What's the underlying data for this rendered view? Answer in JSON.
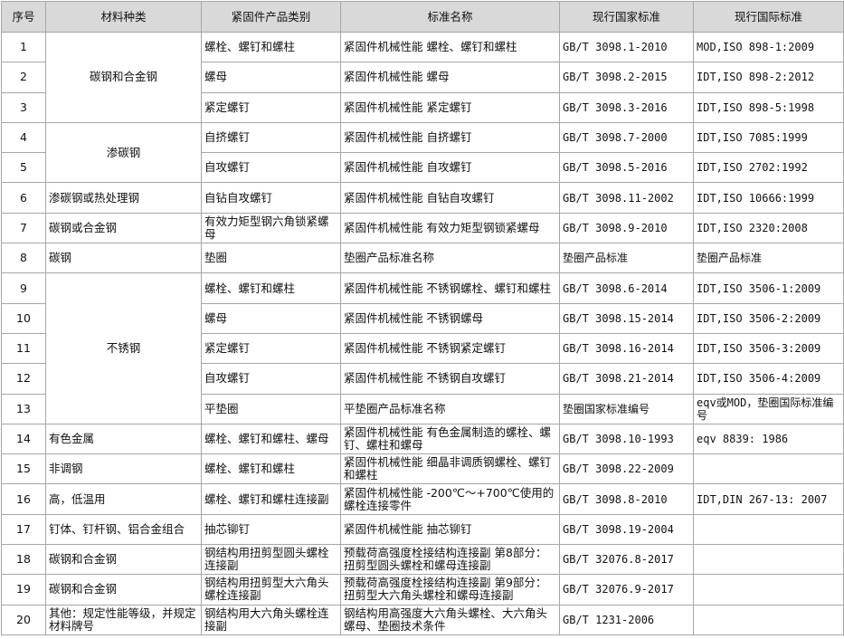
{
  "table": {
    "header": [
      "序号",
      "材料种类",
      "紧固件产品类别",
      "标准名称",
      "现行国家标准",
      "现行国际标准"
    ],
    "rows": [
      {
        "no": "1",
        "material": "碳钢和合金钢",
        "product": "螺栓、螺钉和螺柱",
        "standard": "紧固件机械性能 螺栓、螺钉和螺柱",
        "national": "GB/T 3098.1-2010",
        "international": "MOD,ISO 898-1:2009"
      },
      {
        "no": "2",
        "product": "螺母",
        "standard": "紧固件机械性能 螺母",
        "national": "GB/T 3098.2-2015",
        "international": "IDT,ISO 898-2:2012"
      },
      {
        "no": "3",
        "product": "紧定螺钉",
        "standard": "紧固件机械性能 紧定螺钉",
        "national": "GB/T 3098.3-2016",
        "international": "IDT,ISO 898-5:1998"
      },
      {
        "no": "4",
        "material": "渗碳钢",
        "product": "自挤螺钉",
        "standard": "紧固件机械性能 自挤螺钉",
        "national": "GB/T 3098.7-2000",
        "international": "IDT,ISO 7085:1999"
      },
      {
        "no": "5",
        "product": "自攻螺钉",
        "standard": "紧固件机械性能 自攻螺钉",
        "national": "GB/T 3098.5-2016",
        "international": "IDT,ISO 2702:1992"
      },
      {
        "no": "6",
        "material": "渗碳钢或热处理钢",
        "product": "自钻自攻螺钉",
        "standard": "紧固件机械性能 自钻自攻螺钉",
        "national": "GB/T 3098.11-2002",
        "international": "IDT,ISO 10666:1999"
      },
      {
        "no": "7",
        "material": "碳钢或合金钢",
        "product": "有效力矩型钢六角锁紧螺母",
        "standard": "紧固件机械性能 有效力矩型钢锁紧螺母",
        "national": "GB/T 3098.9-2010",
        "international": "IDT,ISO 2320:2008"
      },
      {
        "no": "8",
        "material": "碳钢",
        "product": "垫圈",
        "standard": "垫圈产品标准名称",
        "national": "垫圈产品标准",
        "international": "垫圈产品标准"
      },
      {
        "no": "9",
        "material": "不锈钢",
        "product": "螺栓、螺钉和螺柱",
        "standard": "紧固件机械性能 不锈钢螺栓、螺钉和螺柱",
        "national": "GB/T 3098.6-2014",
        "international": "IDT,ISO 3506-1:2009"
      },
      {
        "no": "10",
        "product": "螺母",
        "standard": "紧固件机械性能 不锈钢螺母",
        "national": "GB/T 3098.15-2014",
        "international": "IDT,ISO 3506-2:2009"
      },
      {
        "no": "11",
        "product": "紧定螺钉",
        "standard": "紧固件机械性能 不锈钢紧定螺钉",
        "national": "GB/T 3098.16-2014",
        "international": "IDT,ISO 3506-3:2009"
      },
      {
        "no": "12",
        "product": "自攻螺钉",
        "standard": "紧固件机械性能 不锈钢自攻螺钉",
        "national": "GB/T 3098.21-2014",
        "international": "IDT,ISO 3506-4:2009"
      },
      {
        "no": "13",
        "product": "平垫圈",
        "standard": "平垫圈产品标准名称",
        "national": "垫圈国家标准编号",
        "international": "eqv或MOD，垫圈国际标准编号"
      },
      {
        "no": "14",
        "material": "有色金属",
        "product": "螺栓、螺钉和螺柱、螺母",
        "standard": "紧固件机械性能 有色金属制造的螺栓、螺钉、螺柱和螺母",
        "national": "GB/T 3098.10-1993",
        "international": "eqv 8839: 1986"
      },
      {
        "no": "15",
        "material": "非调钢",
        "product": "螺栓、螺钉和螺柱",
        "standard": "紧固件机械性能 细晶非调质钢螺栓、螺钉和螺柱",
        "national": "GB/T 3098.22-2009"
      },
      {
        "no": "16",
        "material": "高，低温用",
        "product": "螺栓、螺钉和螺柱连接副",
        "standard": "紧固件机械性能 -200℃～+700℃使用的螺栓连接零件",
        "national": "GB/T 3098.8-2010",
        "international": "IDT,DIN 267-13: 2007"
      },
      {
        "no": "17",
        "material": "钉体、钉杆钢、铝合金组合",
        "product": "抽芯铆钉",
        "standard": "紧固件机械性能 抽芯铆钉",
        "national": "GB/T 3098.19-2004"
      },
      {
        "no": "18",
        "material": "碳钢和合金钢",
        "product": "钢结构用扭剪型圆头螺栓连接副",
        "standard": "预载荷高强度栓接结构连接副 第8部分：扭剪型圆头螺栓和螺母连接副",
        "national": "GB/T 32076.8-2017"
      },
      {
        "no": "19",
        "material": "碳钢和合金钢",
        "product": "钢结构用扭剪型大六角头螺栓连接副",
        "standard": "预载荷高强度栓接结构连接副 第9部分：扭剪型大六角头螺栓和螺母连接副",
        "national": "GB/T 32076.9-2017"
      },
      {
        "no": "20",
        "material": "其他：规定性能等级，并规定材料牌号",
        "product": "钢结构用大六角头螺栓连接副",
        "standard": "钢结构用高强度大六角头螺栓、大六角头螺母、垫圈技术条件",
        "national": "GB/T 1231-2006"
      }
    ]
  }
}
